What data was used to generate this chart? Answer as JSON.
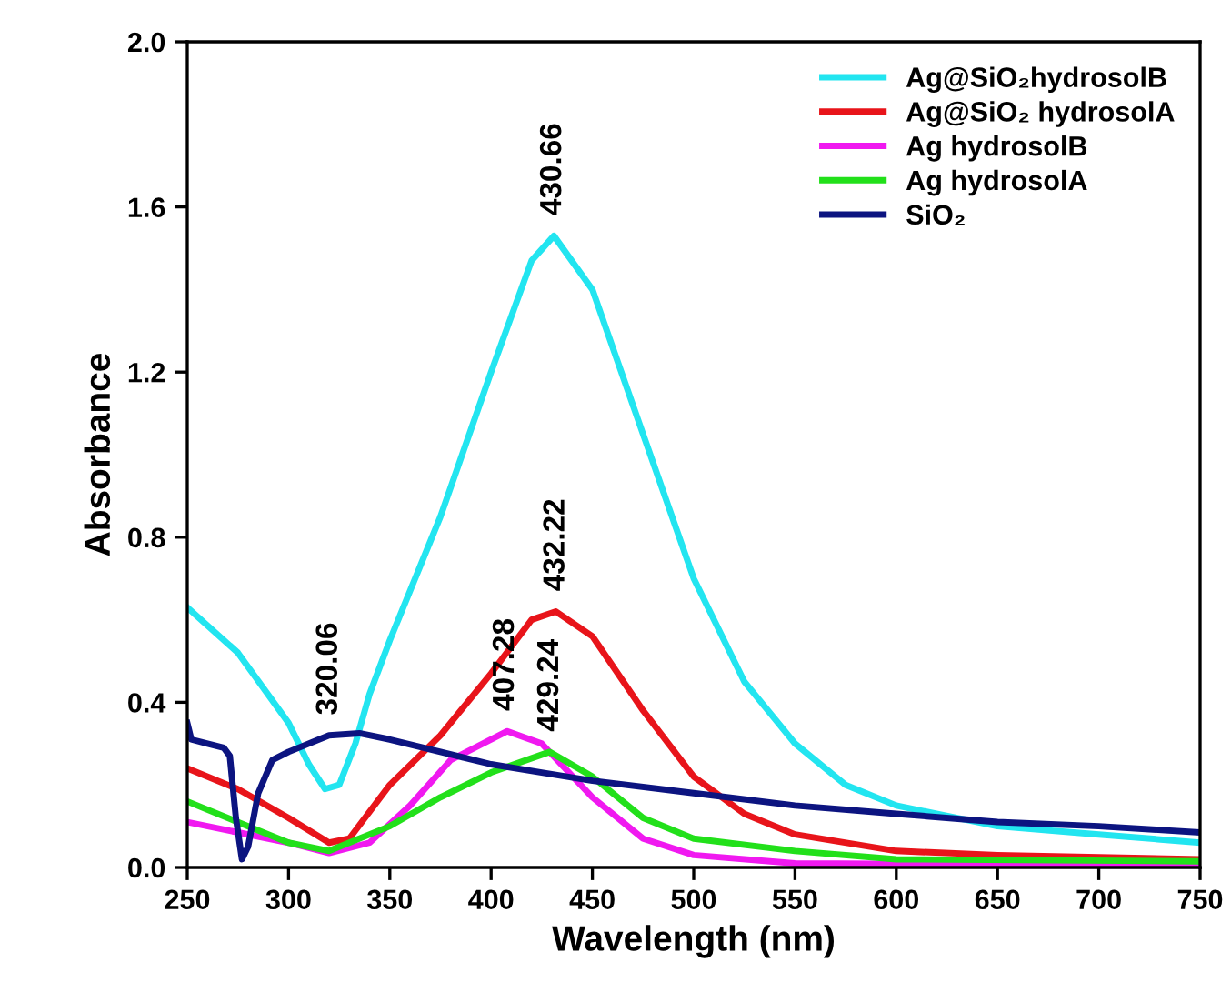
{
  "chart_data": {
    "type": "line",
    "xlabel": "Wavelength (nm)",
    "ylabel": "Absorbance",
    "xlim": [
      250,
      750
    ],
    "ylim": [
      0,
      2.0
    ],
    "xticks": [
      250,
      300,
      350,
      400,
      450,
      500,
      550,
      600,
      650,
      700,
      750
    ],
    "yticks": [
      {
        "value": 0,
        "label": "0.0"
      },
      {
        "value": 0.4,
        "label": "0.4"
      },
      {
        "value": 0.8,
        "label": "0.8"
      },
      {
        "value": 1.2,
        "label": "1.2"
      },
      {
        "value": 1.6,
        "label": "1.6"
      },
      {
        "value": 2.0,
        "label": "2.0"
      }
    ],
    "grid": false,
    "legend": "top right",
    "marker": "none",
    "line_style": "solid",
    "series": [
      {
        "name": "Ag@SiO₂hydrosolB",
        "color": "#22e5f0",
        "x": [
          250,
          275,
          300,
          310,
          318,
          325,
          333,
          340,
          350,
          375,
          400,
          420,
          431,
          450,
          475,
          500,
          525,
          550,
          575,
          600,
          650,
          700,
          750
        ],
        "values": [
          0.63,
          0.52,
          0.35,
          0.25,
          0.19,
          0.2,
          0.3,
          0.42,
          0.55,
          0.85,
          1.2,
          1.47,
          1.53,
          1.4,
          1.05,
          0.7,
          0.45,
          0.3,
          0.2,
          0.15,
          0.1,
          0.08,
          0.06
        ]
      },
      {
        "name": "Ag@SiO₂ hydrosolA",
        "color": "#e8141a",
        "x": [
          250,
          275,
          300,
          320,
          330,
          350,
          375,
          400,
          420,
          432,
          450,
          475,
          500,
          525,
          550,
          600,
          650,
          750
        ],
        "values": [
          0.24,
          0.19,
          0.12,
          0.06,
          0.07,
          0.2,
          0.32,
          0.47,
          0.6,
          0.62,
          0.56,
          0.38,
          0.22,
          0.13,
          0.08,
          0.04,
          0.03,
          0.02
        ]
      },
      {
        "name": "Ag hydrosolB",
        "color": "#f019f0",
        "x": [
          250,
          300,
          320,
          340,
          360,
          380,
          408,
          425,
          450,
          475,
          500,
          550,
          750
        ],
        "values": [
          0.11,
          0.06,
          0.035,
          0.06,
          0.15,
          0.26,
          0.33,
          0.3,
          0.17,
          0.07,
          0.03,
          0.01,
          0.005
        ]
      },
      {
        "name": "Ag hydrosolA",
        "color": "#22e01a",
        "x": [
          250,
          300,
          320,
          350,
          375,
          400,
          429,
          450,
          475,
          500,
          550,
          600,
          750
        ],
        "values": [
          0.16,
          0.06,
          0.04,
          0.1,
          0.17,
          0.23,
          0.28,
          0.22,
          0.12,
          0.07,
          0.04,
          0.02,
          0.015
        ]
      },
      {
        "name": "SiO₂",
        "color": "#0c1480",
        "x": [
          250,
          252,
          260,
          268,
          271,
          274,
          277,
          280,
          285,
          292,
          300,
          320,
          335,
          350,
          375,
          400,
          425,
          450,
          500,
          550,
          600,
          650,
          700,
          750
        ],
        "values": [
          0.35,
          0.31,
          0.3,
          0.29,
          0.27,
          0.12,
          0.02,
          0.05,
          0.18,
          0.26,
          0.28,
          0.32,
          0.325,
          0.31,
          0.28,
          0.25,
          0.23,
          0.21,
          0.18,
          0.15,
          0.13,
          0.11,
          0.1,
          0.085
        ]
      }
    ],
    "annotations": [
      {
        "text": "430.66",
        "x": 430.66,
        "y": 1.53
      },
      {
        "text": "432.22",
        "x": 432.22,
        "y": 0.62
      },
      {
        "text": "407.28",
        "x": 407.28,
        "y": 0.33
      },
      {
        "text": "429.24",
        "x": 429.24,
        "y": 0.28
      },
      {
        "text": "320.06",
        "x": 320.06,
        "y": 0.32
      }
    ]
  }
}
